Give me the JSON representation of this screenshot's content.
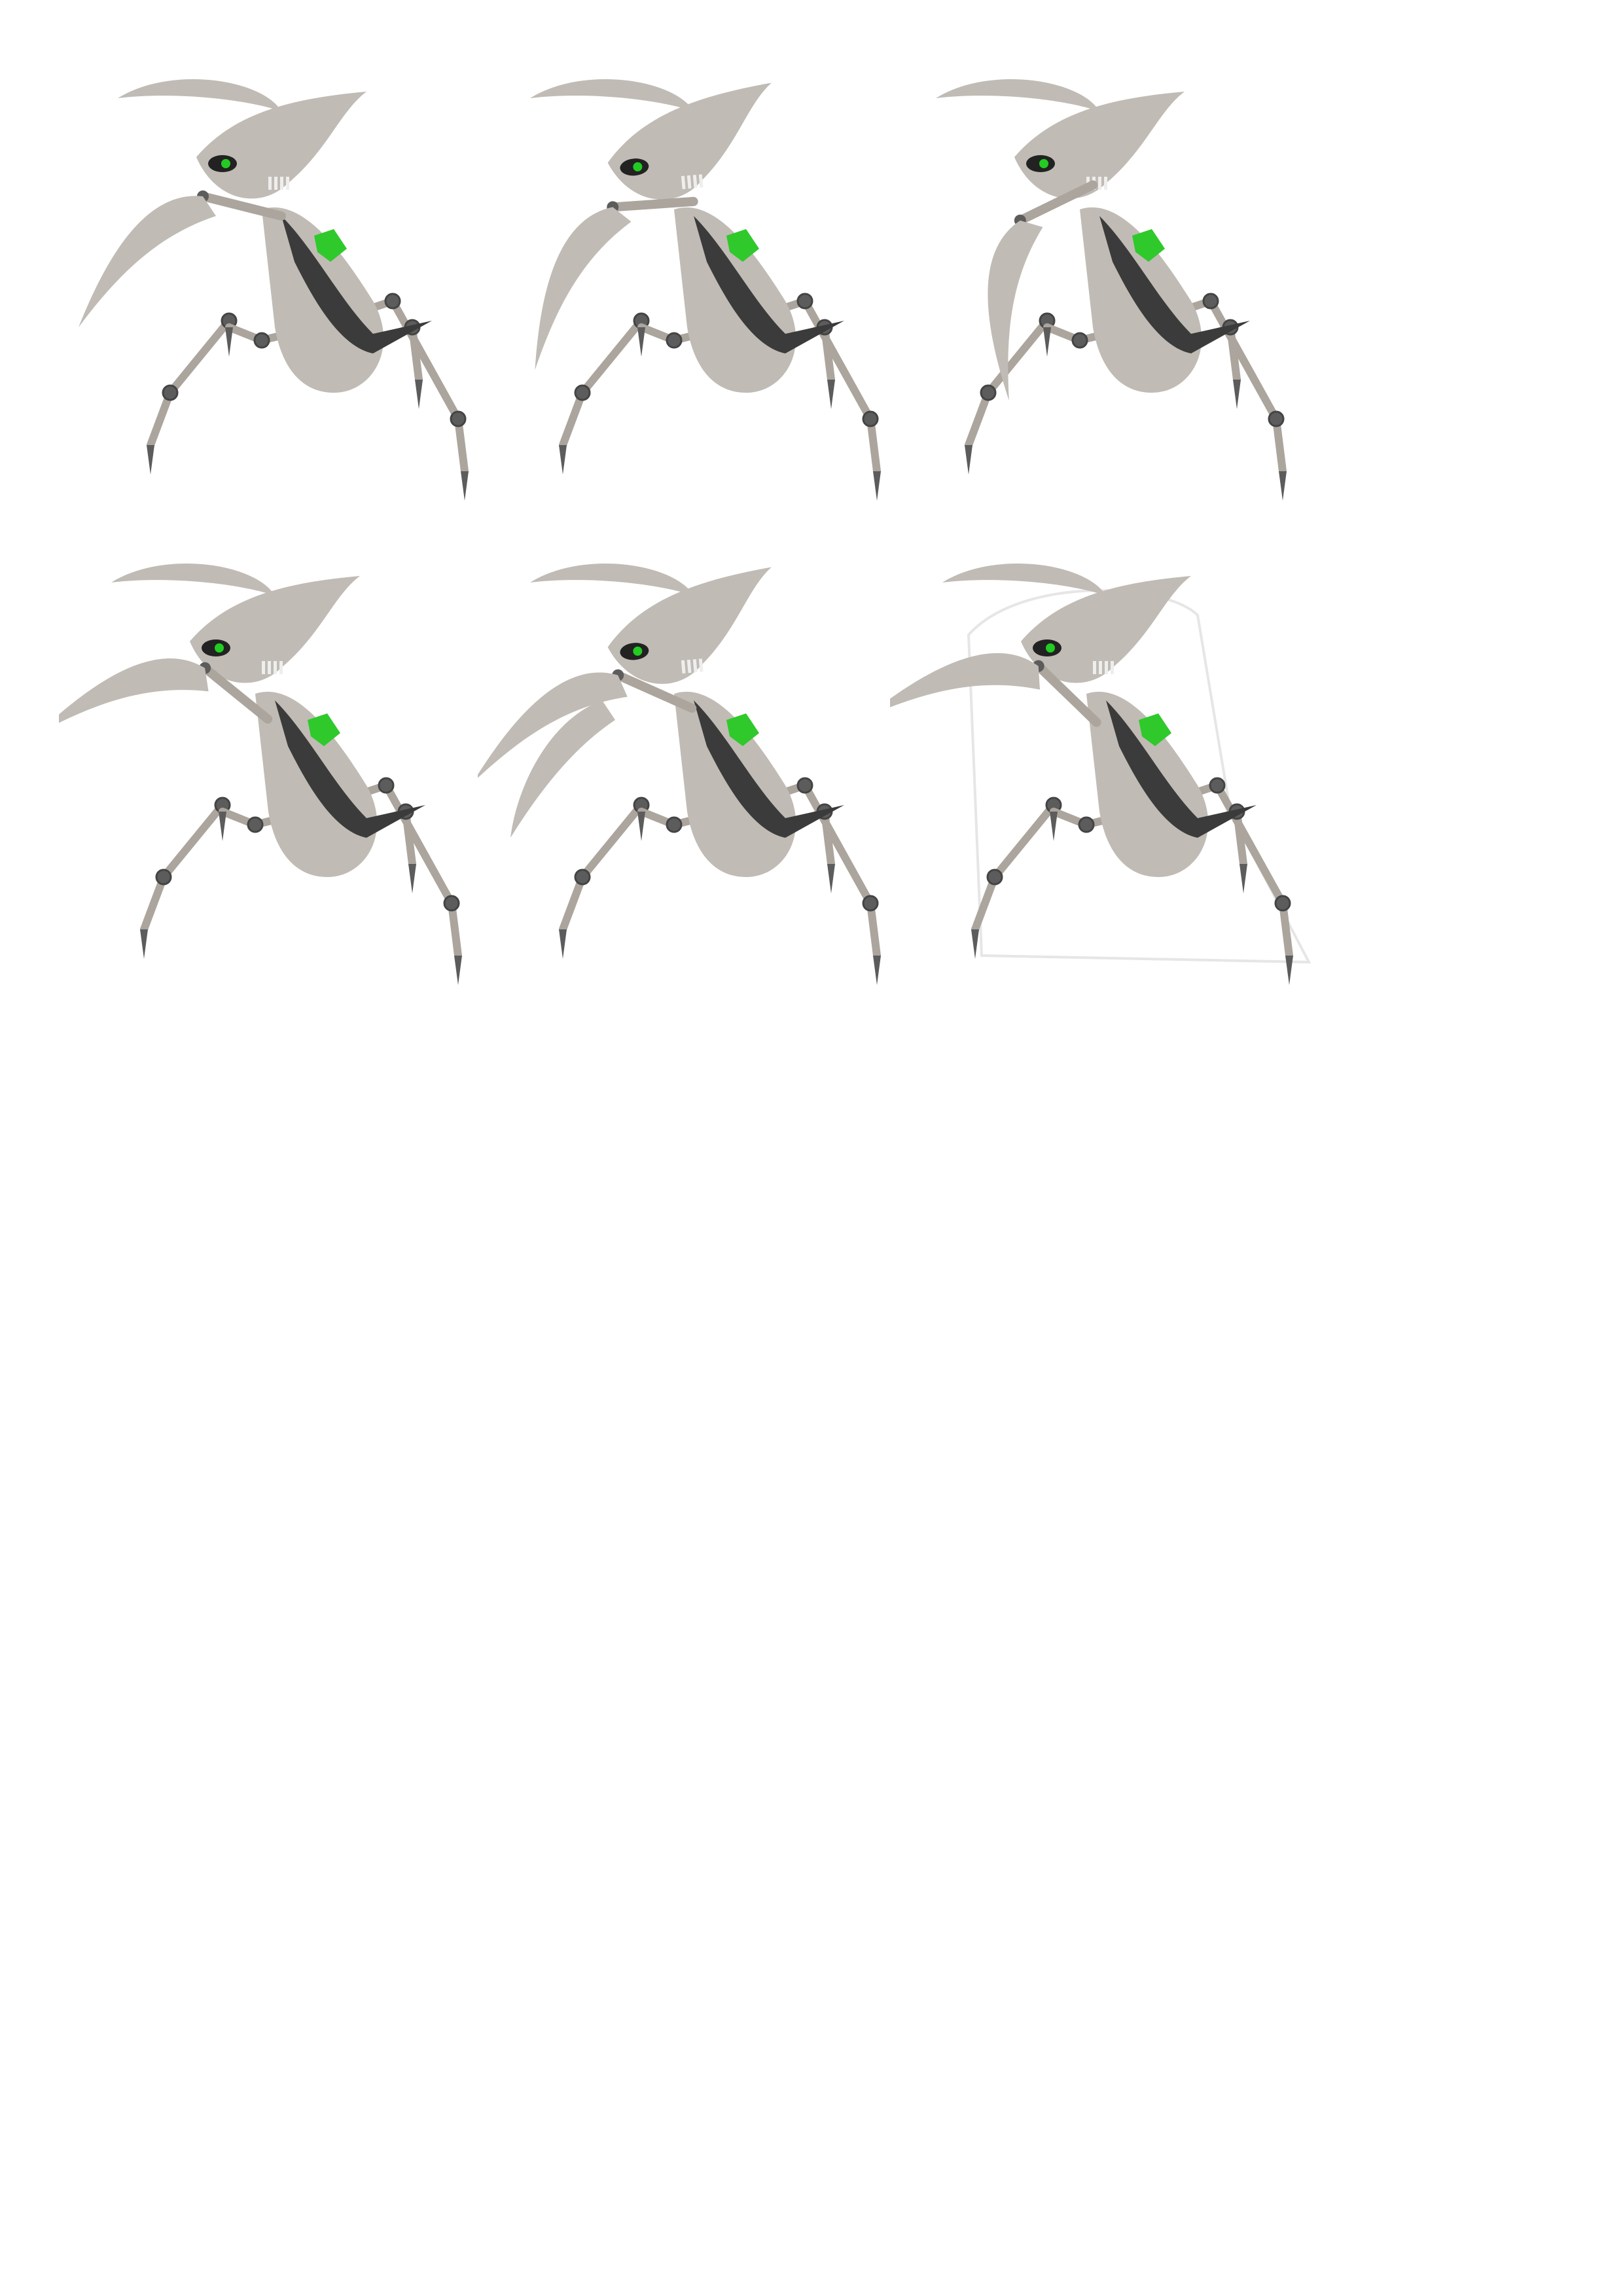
{
  "sheet": {
    "background": "#ffffff",
    "rows": 2,
    "columns": 3
  },
  "palette": {
    "shell": "#c0bbb4",
    "shell_shadow": "#aba59d",
    "dark_body": "#3b3b3b",
    "joint": "#5c5c5c",
    "eye": "#22cc22",
    "gem": "#2fc92b",
    "outline": "#e6e6e6"
  },
  "sprites": [
    {
      "id": "frame-1",
      "icon": "robot-mantis-icon",
      "pose": "claw-low",
      "arm_angle": 0
    },
    {
      "id": "frame-2",
      "icon": "robot-mantis-icon",
      "pose": "claw-raised",
      "arm_angle": -18
    },
    {
      "id": "frame-3",
      "icon": "robot-mantis-icon",
      "pose": "arm-up",
      "arm_angle": -40
    },
    {
      "id": "frame-4",
      "icon": "robot-mantis-icon",
      "pose": "claw-down",
      "arm_angle": 25
    },
    {
      "id": "frame-5",
      "icon": "robot-mantis-icon",
      "pose": "double-claw",
      "arm_angle": 10
    },
    {
      "id": "frame-6",
      "icon": "robot-mantis-icon",
      "pose": "outlined",
      "arm_angle": 30
    }
  ]
}
